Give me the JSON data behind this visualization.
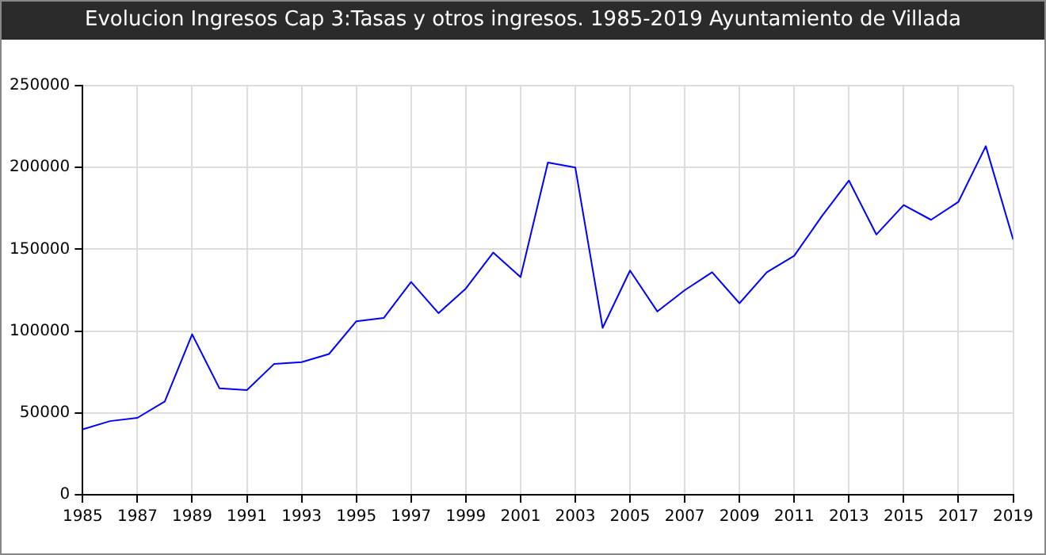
{
  "chart_data": {
    "type": "line",
    "title": "Evolucion Ingresos Cap 3:Tasas y otros ingresos. 1985-2019 Ayuntamiento de Villada",
    "x": [
      1985,
      1986,
      1987,
      1988,
      1989,
      1990,
      1991,
      1992,
      1993,
      1994,
      1995,
      1996,
      1997,
      1998,
      1999,
      2000,
      2001,
      2002,
      2003,
      2004,
      2005,
      2006,
      2007,
      2008,
      2009,
      2010,
      2011,
      2012,
      2013,
      2014,
      2015,
      2016,
      2017,
      2018,
      2019
    ],
    "series": [
      {
        "color": "#0000ff",
        "values": [
          40000,
          45000,
          47000,
          57000,
          98000,
          65000,
          64000,
          80000,
          81000,
          86000,
          106000,
          108000,
          130000,
          111000,
          126000,
          148000,
          133000,
          203000,
          200000,
          102000,
          137000,
          112000,
          125000,
          136000,
          117000,
          136000,
          146000,
          170000,
          192000,
          159000,
          177000,
          168000,
          179000,
          213000,
          156000
        ]
      }
    ],
    "xlim": [
      1985,
      2019
    ],
    "xticks": [
      1985,
      1987,
      1989,
      1991,
      1993,
      1995,
      1997,
      1999,
      2001,
      2003,
      2005,
      2007,
      2009,
      2011,
      2013,
      2015,
      2017,
      2019
    ],
    "ylim": [
      0,
      250000
    ],
    "yticks": [
      0,
      50000,
      100000,
      150000,
      200000,
      250000
    ],
    "grid": true,
    "legend": false,
    "marker": "none",
    "line_style": "solid"
  }
}
